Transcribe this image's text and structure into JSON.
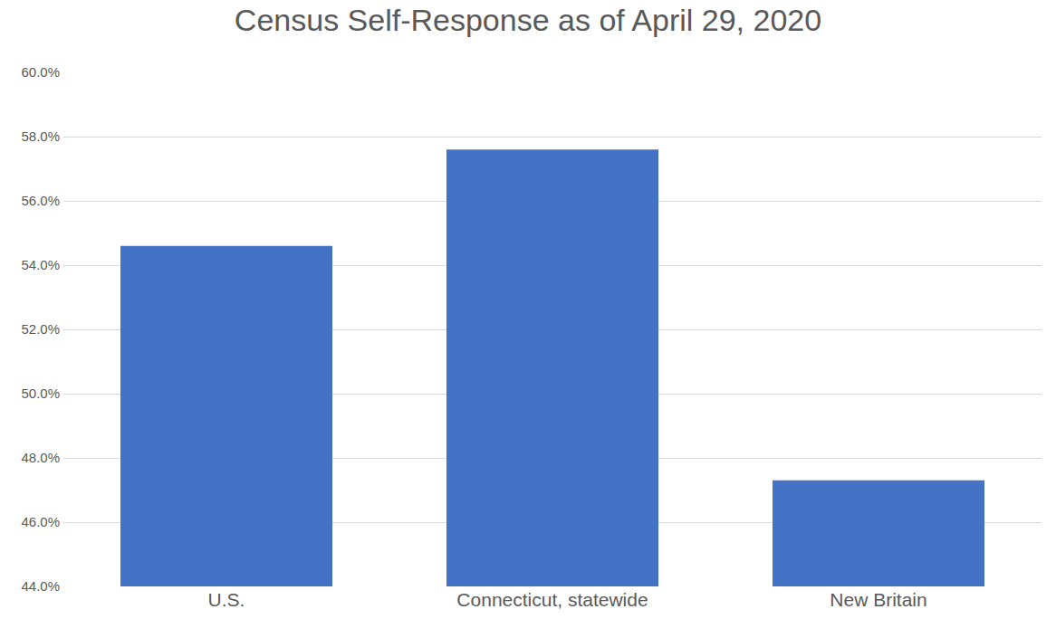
{
  "chart_data": {
    "type": "bar",
    "title": "Census Self-Response as of April 29, 2020",
    "categories": [
      "U.S.",
      "Connecticut, statewide",
      "New Britain"
    ],
    "values": [
      54.6,
      57.6,
      47.3
    ],
    "color": "#4472c4",
    "ylim": [
      44,
      60
    ],
    "yticks": [
      {
        "value": 44,
        "label": "44.0%"
      },
      {
        "value": 46,
        "label": "46.0%"
      },
      {
        "value": 48,
        "label": "48.0%"
      },
      {
        "value": 50,
        "label": "50.0%"
      },
      {
        "value": 52,
        "label": "52.0%"
      },
      {
        "value": 54,
        "label": "54.0%"
      },
      {
        "value": 56,
        "label": "56.0%"
      },
      {
        "value": 58,
        "label": "58.0%"
      },
      {
        "value": 60,
        "label": "60.0%"
      }
    ],
    "grid": true
  }
}
